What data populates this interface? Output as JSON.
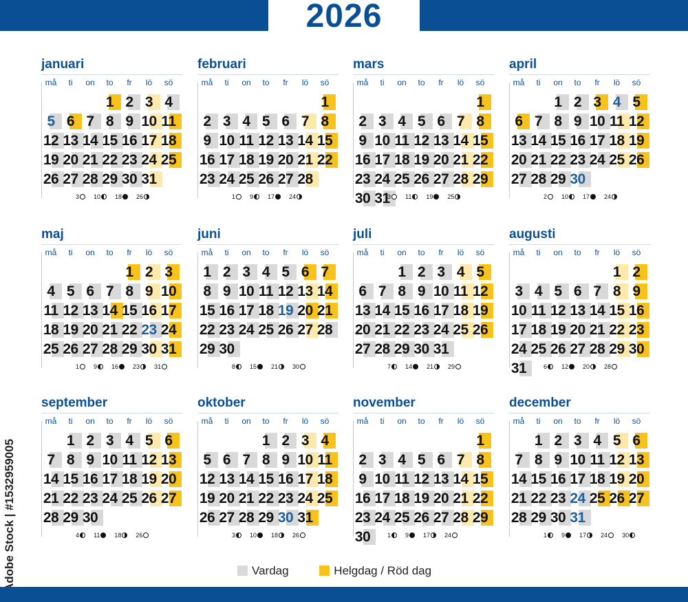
{
  "year": "2026",
  "weekday_headers": [
    "må",
    "ti",
    "on",
    "to",
    "fr",
    "lö",
    "sö"
  ],
  "colors": {
    "brand": "#0a4f93",
    "weekday": "#d9d9d9",
    "holiday": "#f7c21b",
    "half_holiday": "#fce9ab"
  },
  "side_text": "Adobe Stock | #1532959005",
  "legend": {
    "weekday_label": "Vardag",
    "holiday_label": "Helgdag / Röd dag"
  },
  "months": [
    {
      "name": "januari",
      "offset": 3,
      "days": 31,
      "holidays": [
        1,
        6,
        11,
        18,
        25
      ],
      "light": [
        3,
        10,
        17,
        24,
        31
      ],
      "blue": [
        5
      ],
      "moons": [
        {
          "day": "3",
          "phase": "full"
        },
        {
          "day": "10",
          "phase": "last"
        },
        {
          "day": "18",
          "phase": "new"
        },
        {
          "day": "26",
          "phase": "first"
        }
      ]
    },
    {
      "name": "februari",
      "offset": 6,
      "days": 28,
      "holidays": [
        1,
        8,
        15,
        22
      ],
      "light": [
        7,
        14,
        21,
        28
      ],
      "blue": [],
      "moons": [
        {
          "day": "1",
          "phase": "full"
        },
        {
          "day": "9",
          "phase": "last"
        },
        {
          "day": "17",
          "phase": "new"
        },
        {
          "day": "24",
          "phase": "first"
        }
      ]
    },
    {
      "name": "mars",
      "offset": 6,
      "days": 31,
      "holidays": [
        1,
        8,
        15,
        22,
        29
      ],
      "light": [
        7,
        14,
        21,
        28
      ],
      "blue": [],
      "moons": [
        {
          "day": "3",
          "phase": "full"
        },
        {
          "day": "11",
          "phase": "last"
        },
        {
          "day": "19",
          "phase": "new"
        },
        {
          "day": "25",
          "phase": "first"
        }
      ]
    },
    {
      "name": "april",
      "offset": 2,
      "days": 30,
      "holidays": [
        3,
        5,
        6,
        12,
        19,
        26
      ],
      "light": [
        11,
        18,
        25
      ],
      "blue": [
        4,
        30
      ],
      "moons": [
        {
          "day": "2",
          "phase": "full"
        },
        {
          "day": "10",
          "phase": "last"
        },
        {
          "day": "17",
          "phase": "new"
        },
        {
          "day": "24",
          "phase": "first"
        }
      ]
    },
    {
      "name": "maj",
      "offset": 4,
      "days": 31,
      "holidays": [
        1,
        3,
        10,
        14,
        17,
        24,
        31
      ],
      "light": [
        2,
        9,
        16,
        30
      ],
      "blue": [
        23
      ],
      "moons": [
        {
          "day": "1",
          "phase": "full"
        },
        {
          "day": "9",
          "phase": "last"
        },
        {
          "day": "16",
          "phase": "new"
        },
        {
          "day": "23",
          "phase": "first"
        },
        {
          "day": "31",
          "phase": "full"
        }
      ]
    },
    {
      "name": "juni",
      "offset": 0,
      "days": 30,
      "holidays": [
        6,
        7,
        14,
        20,
        21
      ],
      "light": [
        13,
        27
      ],
      "blue": [
        19
      ],
      "moons": [
        {
          "day": "8",
          "phase": "last"
        },
        {
          "day": "15",
          "phase": "new"
        },
        {
          "day": "21",
          "phase": "first"
        },
        {
          "day": "30",
          "phase": "full"
        }
      ]
    },
    {
      "name": "juli",
      "offset": 2,
      "days": 31,
      "holidays": [
        5,
        12,
        19,
        26
      ],
      "light": [
        4,
        11,
        18,
        25
      ],
      "blue": [],
      "moons": [
        {
          "day": "7",
          "phase": "last"
        },
        {
          "day": "14",
          "phase": "new"
        },
        {
          "day": "21",
          "phase": "first"
        },
        {
          "day": "29",
          "phase": "full"
        }
      ]
    },
    {
      "name": "augusti",
      "offset": 5,
      "days": 31,
      "holidays": [
        2,
        9,
        16,
        23,
        30
      ],
      "light": [
        1,
        8,
        15,
        22,
        29
      ],
      "blue": [],
      "moons": [
        {
          "day": "6",
          "phase": "last"
        },
        {
          "day": "12",
          "phase": "new"
        },
        {
          "day": "20",
          "phase": "first"
        },
        {
          "day": "28",
          "phase": "full"
        }
      ]
    },
    {
      "name": "september",
      "offset": 1,
      "days": 30,
      "holidays": [
        6,
        13,
        20,
        27
      ],
      "light": [
        5,
        12,
        19,
        26
      ],
      "blue": [],
      "moons": [
        {
          "day": "4",
          "phase": "last"
        },
        {
          "day": "11",
          "phase": "new"
        },
        {
          "day": "18",
          "phase": "first"
        },
        {
          "day": "26",
          "phase": "full"
        }
      ]
    },
    {
      "name": "oktober",
      "offset": 3,
      "days": 31,
      "holidays": [
        4,
        11,
        18,
        25,
        31
      ],
      "light": [
        3,
        10,
        17,
        24
      ],
      "blue": [
        30
      ],
      "moons": [
        {
          "day": "3",
          "phase": "last"
        },
        {
          "day": "10",
          "phase": "new"
        },
        {
          "day": "18",
          "phase": "first"
        },
        {
          "day": "26",
          "phase": "full"
        }
      ]
    },
    {
      "name": "november",
      "offset": 6,
      "days": 30,
      "holidays": [
        1,
        8,
        15,
        22,
        29
      ],
      "light": [
        7,
        14,
        21,
        28
      ],
      "blue": [],
      "moons": [
        {
          "day": "1",
          "phase": "last"
        },
        {
          "day": "9",
          "phase": "new"
        },
        {
          "day": "17",
          "phase": "first"
        },
        {
          "day": "24",
          "phase": "full"
        }
      ]
    },
    {
      "name": "december",
      "offset": 1,
      "days": 31,
      "holidays": [
        6,
        13,
        20,
        25,
        26,
        27
      ],
      "light": [
        5,
        12,
        19
      ],
      "blue": [
        24,
        31
      ],
      "moons": [
        {
          "day": "1",
          "phase": "last"
        },
        {
          "day": "9",
          "phase": "new"
        },
        {
          "day": "17",
          "phase": "first"
        },
        {
          "day": "24",
          "phase": "full"
        },
        {
          "day": "30",
          "phase": "last"
        }
      ]
    }
  ]
}
